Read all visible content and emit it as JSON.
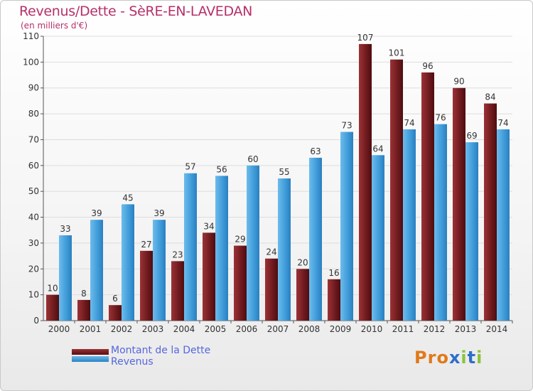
{
  "header": {
    "title": "Revenus/Dette - SèRE-EN-LAVEDAN",
    "subtitle": "(en milliers d'€)"
  },
  "legend": {
    "items": [
      "Montant de la Dette",
      "Revenus"
    ]
  },
  "logo": {
    "text": "Proxiti"
  },
  "colors": {
    "dette": "#7a1e22",
    "revenus": "#3e9ad8",
    "title": "#b5306a",
    "legend_text": "#5566dd"
  },
  "chart_data": {
    "type": "bar",
    "title": "Revenus/Dette - SèRE-EN-LAVEDAN",
    "ylabel": "(en milliers d'€)",
    "xlabel": "",
    "ylim": [
      0,
      110
    ],
    "yticks": [
      0,
      10,
      20,
      30,
      40,
      50,
      60,
      70,
      80,
      90,
      100,
      110
    ],
    "grid": true,
    "legend_position": "bottom-left",
    "categories": [
      "2000",
      "2001",
      "2002",
      "2003",
      "2004",
      "2005",
      "2006",
      "2007",
      "2008",
      "2009",
      "2010",
      "2011",
      "2012",
      "2013",
      "2014"
    ],
    "series": [
      {
        "name": "Montant de la Dette",
        "values": [
          10,
          8,
          6,
          27,
          23,
          34,
          29,
          24,
          20,
          16,
          107,
          101,
          96,
          90,
          84
        ]
      },
      {
        "name": "Revenus",
        "values": [
          33,
          39,
          45,
          39,
          57,
          56,
          60,
          55,
          63,
          73,
          64,
          74,
          76,
          69,
          74
        ]
      }
    ]
  }
}
